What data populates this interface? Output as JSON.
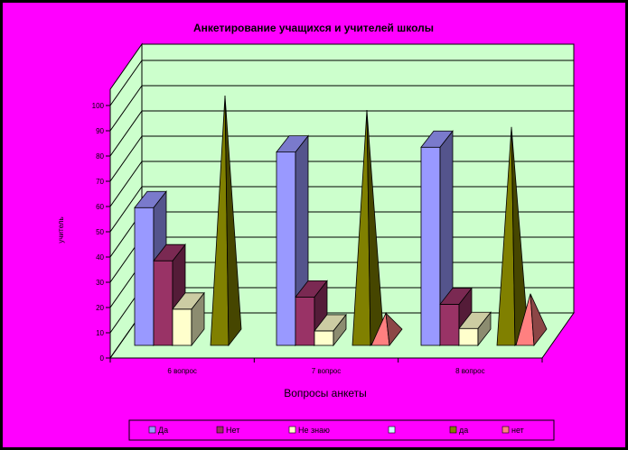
{
  "chart_data": {
    "type": "bar",
    "title": "Анкетирование учащихся и учителей школы",
    "xlabel": "Вопросы анкеты",
    "ylabel": "учитель",
    "ylim": [
      0,
      100
    ],
    "yticks": [
      "0",
      "10",
      "20",
      "30",
      "40",
      "50",
      "60",
      "70",
      "80",
      "90",
      "100"
    ],
    "categories": [
      "6 вопрос",
      "7 вопрос",
      "8 вопрос"
    ],
    "series": [
      {
        "name": "Да",
        "shape": "box",
        "color": "#9999ff",
        "values": [
          57,
          80,
          82
        ]
      },
      {
        "name": "Нет",
        "shape": "box",
        "color": "#993366",
        "values": [
          35,
          20,
          17
        ]
      },
      {
        "name": "Не знаю",
        "shape": "box",
        "color": "#ffffcc",
        "values": [
          15,
          6,
          7
        ]
      },
      {
        "name": "",
        "shape": "box",
        "color": "#ccffff",
        "values": [
          0,
          0,
          0
        ]
      },
      {
        "name": "да",
        "shape": "pyramid",
        "color": "#808000",
        "values": [
          100,
          94,
          87
        ]
      },
      {
        "name": "нет",
        "shape": "pyramid",
        "color": "#ff8080",
        "values": [
          0,
          10,
          18
        ]
      }
    ],
    "grid": true,
    "legend_position": "bottom",
    "wall_color": "#ccffcc"
  }
}
